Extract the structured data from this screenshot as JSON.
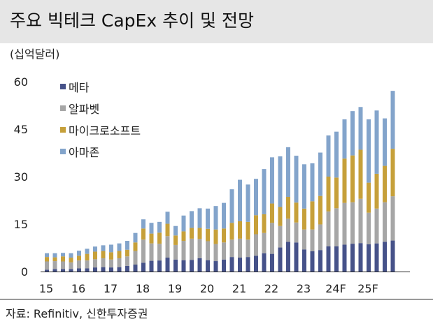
{
  "header": {
    "title": "주요 빅테크 CapEx 추이 및 전망"
  },
  "unit_label": "(십억달러)",
  "source": "자료: Refinitiv, 신한투자증권",
  "colors": {
    "meta": "#465289",
    "alphabet": "#a6a6a6",
    "microsoft": "#c6a03a",
    "amazon": "#83a4cb",
    "title_bg": "#e6e6e6"
  },
  "chart_data": {
    "type": "bar",
    "stacked": true,
    "ylabel": "(십억달러)",
    "ylim": [
      0,
      60
    ],
    "yticks": [
      0,
      15,
      30,
      45,
      60
    ],
    "xtick_labels": [
      "15",
      "16",
      "17",
      "18",
      "19",
      "20",
      "21",
      "22",
      "23",
      "24F",
      "25F"
    ],
    "legend_position": "top-left",
    "grid": false,
    "categories": [
      "15Q1",
      "15Q2",
      "15Q3",
      "15Q4",
      "16Q1",
      "16Q2",
      "16Q3",
      "16Q4",
      "17Q1",
      "17Q2",
      "17Q3",
      "17Q4",
      "18Q1",
      "18Q2",
      "18Q3",
      "18Q4",
      "19Q1",
      "19Q2",
      "19Q3",
      "19Q4",
      "20Q1",
      "20Q2",
      "20Q3",
      "20Q4",
      "21Q1",
      "21Q2",
      "21Q3",
      "21Q4",
      "22Q1",
      "22Q2",
      "22Q3",
      "22Q4",
      "23Q1",
      "23Q2",
      "23Q3",
      "23Q4",
      "24Q1",
      "24Q2",
      "24Q3",
      "24Q4",
      "25Q1",
      "25Q2",
      "25Q3",
      "25Q4"
    ],
    "series": [
      {
        "name": "메타",
        "color": "#465289",
        "values": [
          0.6,
          0.8,
          0.8,
          0.8,
          1.0,
          1.0,
          1.3,
          1.4,
          1.3,
          1.4,
          1.8,
          2.2,
          2.8,
          3.4,
          3.5,
          4.4,
          3.8,
          3.6,
          3.7,
          4.2,
          3.6,
          3.3,
          3.8,
          4.6,
          4.4,
          4.6,
          5.0,
          5.8,
          5.6,
          7.6,
          9.4,
          9.2,
          7.0,
          6.4,
          6.8,
          8.0,
          8.0,
          8.5,
          8.8,
          9.0,
          8.6,
          8.9,
          9.4,
          9.8
        ]
      },
      {
        "name": "알파벳",
        "color": "#a6a6a6",
        "values": [
          2.6,
          2.5,
          2.4,
          2.1,
          2.5,
          2.5,
          2.6,
          2.8,
          2.5,
          2.8,
          3.0,
          4.3,
          7.3,
          5.5,
          5.3,
          6.8,
          4.6,
          6.1,
          6.7,
          6.1,
          6.0,
          5.4,
          5.4,
          5.5,
          6.0,
          5.5,
          6.8,
          6.4,
          9.8,
          6.8,
          7.3,
          6.3,
          6.3,
          6.9,
          8.1,
          11.0,
          12.0,
          13.2,
          13.1,
          14.0,
          10.0,
          11.0,
          12.5,
          14.0
        ]
      },
      {
        "name": "마이크로소프트",
        "color": "#c6a03a",
        "values": [
          1.4,
          1.2,
          1.6,
          1.5,
          1.5,
          2.1,
          2.4,
          2.3,
          2.3,
          2.3,
          2.1,
          2.7,
          3.5,
          3.1,
          3.5,
          3.9,
          3.0,
          3.0,
          3.4,
          3.5,
          3.9,
          4.6,
          4.4,
          5.3,
          5.5,
          5.6,
          6.0,
          5.9,
          6.1,
          6.0,
          6.9,
          6.3,
          6.6,
          8.9,
          9.0,
          11.0,
          9.7,
          14.0,
          14.8,
          15.5,
          9.5,
          11.0,
          11.5,
          15.0
        ]
      },
      {
        "name": "아마존",
        "color": "#83a4cb",
        "values": [
          1.2,
          1.3,
          1.1,
          1.4,
          1.6,
          1.6,
          1.6,
          1.8,
          2.4,
          2.4,
          2.8,
          3.0,
          2.9,
          3.4,
          3.4,
          3.8,
          3.0,
          5.0,
          5.3,
          6.2,
          6.4,
          7.4,
          8.1,
          10.6,
          13.1,
          11.8,
          11.5,
          14.3,
          14.6,
          16.0,
          15.7,
          14.8,
          14.0,
          12.0,
          13.7,
          13.0,
          14.5,
          12.4,
          14.0,
          13.5,
          20.0,
          20.0,
          15.0,
          18.3
        ]
      }
    ]
  }
}
